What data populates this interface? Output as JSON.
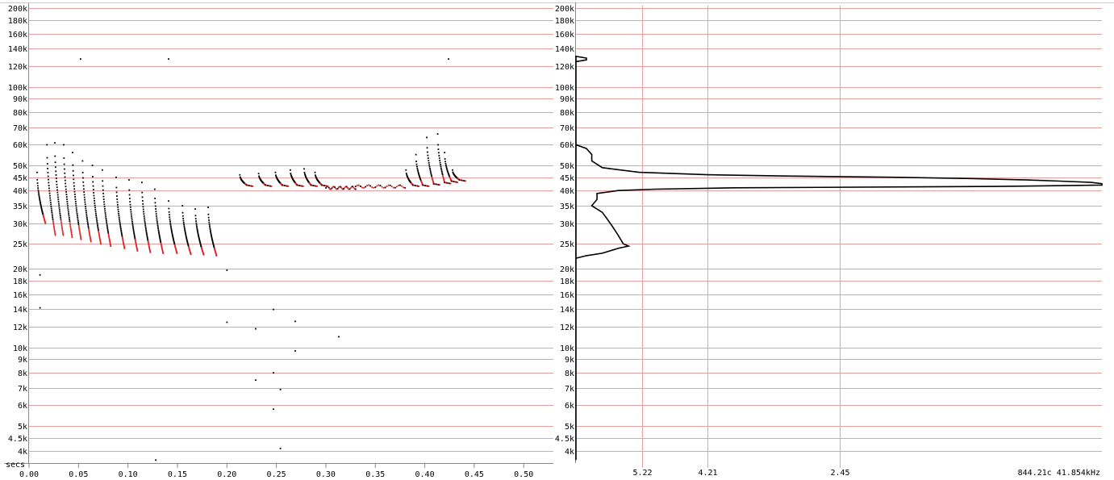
{
  "colors": {
    "grid": "#e8a0a0",
    "background": "#ffffff",
    "ink": "#000000",
    "highlight": "#e02020"
  },
  "chart_data": [
    {
      "type": "scatter",
      "title": "",
      "xlabel": "secs",
      "ylabel": "",
      "y_scale": "log",
      "xlim": [
        0.0,
        0.53
      ],
      "ylim": [
        3600,
        205000
      ],
      "x_ticks": [
        "0.00",
        "0.05",
        "0.10",
        "0.15",
        "0.20",
        "0.25",
        "0.30",
        "0.35",
        "0.40",
        "0.45",
        "0.50"
      ],
      "y_ticks": [
        {
          "v": 200000,
          "label": "200k"
        },
        {
          "v": 180000,
          "label": "180k"
        },
        {
          "v": 160000,
          "label": "160k"
        },
        {
          "v": 140000,
          "label": "140k"
        },
        {
          "v": 120000,
          "label": "120k"
        },
        {
          "v": 100000,
          "label": "100k"
        },
        {
          "v": 90000,
          "label": "90k"
        },
        {
          "v": 80000,
          "label": "80k"
        },
        {
          "v": 70000,
          "label": "70k"
        },
        {
          "v": 60000,
          "label": "60k"
        },
        {
          "v": 50000,
          "label": "50k"
        },
        {
          "v": 45000,
          "label": "45k"
        },
        {
          "v": 40000,
          "label": "40k"
        },
        {
          "v": 35000,
          "label": "35k"
        },
        {
          "v": 30000,
          "label": "30k"
        },
        {
          "v": 25000,
          "label": "25k"
        },
        {
          "v": 20000,
          "label": "20k"
        },
        {
          "v": 18000,
          "label": "18k"
        },
        {
          "v": 16000,
          "label": "16k"
        },
        {
          "v": 14000,
          "label": "14k"
        },
        {
          "v": 12000,
          "label": "12k"
        },
        {
          "v": 10000,
          "label": "10k"
        },
        {
          "v": 9000,
          "label": "9k"
        },
        {
          "v": 8000,
          "label": "8k"
        },
        {
          "v": 7000,
          "label": "7k"
        },
        {
          "v": 6000,
          "label": "6k"
        },
        {
          "v": 5000,
          "label": "5k"
        },
        {
          "v": 4500,
          "label": "4.5k"
        },
        {
          "v": 4000,
          "label": "4k"
        }
      ],
      "grid": true,
      "pulses_fm": [
        {
          "t": 0.008,
          "f0": 47000,
          "f1": 30000
        },
        {
          "t": 0.018,
          "f0": 60000,
          "f1": 27000
        },
        {
          "t": 0.026,
          "f0": 61000,
          "f1": 27000
        },
        {
          "t": 0.035,
          "f0": 60000,
          "f1": 26500
        },
        {
          "t": 0.044,
          "f0": 56000,
          "f1": 26000
        },
        {
          "t": 0.054,
          "f0": 52000,
          "f1": 25500
        },
        {
          "t": 0.064,
          "f0": 50000,
          "f1": 25000
        },
        {
          "t": 0.074,
          "f0": 48000,
          "f1": 24500
        },
        {
          "t": 0.088,
          "f0": 45000,
          "f1": 24000
        },
        {
          "t": 0.101,
          "f0": 44000,
          "f1": 23500
        },
        {
          "t": 0.114,
          "f0": 43000,
          "f1": 23200
        },
        {
          "t": 0.127,
          "f0": 40500,
          "f1": 23000
        },
        {
          "t": 0.141,
          "f0": 36500,
          "f1": 23000
        },
        {
          "t": 0.155,
          "f0": 35000,
          "f1": 22800
        },
        {
          "t": 0.168,
          "f0": 34000,
          "f1": 22700
        },
        {
          "t": 0.181,
          "f0": 34500,
          "f1": 22500
        }
      ],
      "pulses_cf": [
        {
          "t": 0.213,
          "f0": 46000,
          "f1": 42000
        },
        {
          "t": 0.232,
          "f0": 46500,
          "f1": 42000
        },
        {
          "t": 0.249,
          "f0": 47000,
          "f1": 42000
        },
        {
          "t": 0.264,
          "f0": 48000,
          "f1": 42000
        },
        {
          "t": 0.278,
          "f0": 48500,
          "f1": 42000
        },
        {
          "t": 0.289,
          "f0": 47000,
          "f1": 42000
        },
        {
          "t": 0.381,
          "f0": 48000,
          "f1": 42000
        },
        {
          "t": 0.391,
          "f0": 55000,
          "f1": 42000
        },
        {
          "t": 0.402,
          "f0": 64000,
          "f1": 42500
        },
        {
          "t": 0.413,
          "f0": 66000,
          "f1": 43000
        },
        {
          "t": 0.42,
          "f0": 56000,
          "f1": 43500
        },
        {
          "t": 0.428,
          "f0": 48000,
          "f1": 44000
        }
      ],
      "flat_segments": [
        {
          "t0": 0.3,
          "t1": 0.33,
          "f": 41000
        },
        {
          "t0": 0.33,
          "t1": 0.38,
          "f": 41500
        }
      ],
      "noise_points": [
        {
          "t": 0.052,
          "f": 128000
        },
        {
          "t": 0.141,
          "f": 128000
        },
        {
          "t": 0.424,
          "f": 128000
        },
        {
          "t": 0.011,
          "f": 19000
        },
        {
          "t": 0.011,
          "f": 14200
        },
        {
          "t": 0.2,
          "f": 19800
        },
        {
          "t": 0.2,
          "f": 12500
        },
        {
          "t": 0.229,
          "f": 11800
        },
        {
          "t": 0.247,
          "f": 14000
        },
        {
          "t": 0.269,
          "f": 12600
        },
        {
          "t": 0.269,
          "f": 9700
        },
        {
          "t": 0.313,
          "f": 11000
        },
        {
          "t": 0.247,
          "f": 8000
        },
        {
          "t": 0.229,
          "f": 7500
        },
        {
          "t": 0.254,
          "f": 6900
        },
        {
          "t": 0.247,
          "f": 5800
        },
        {
          "t": 0.254,
          "f": 4100
        },
        {
          "t": 0.128,
          "f": 3700
        }
      ]
    },
    {
      "type": "line",
      "title": "",
      "xlabel": "",
      "ylabel": "",
      "y_scale": "log",
      "ylim": [
        3600,
        205000
      ],
      "x_ticks": [
        "5.22",
        "4.21",
        "2.45"
      ],
      "readout": "844.21c 41.854kHz",
      "profile": [
        [
          3700,
          0.0
        ],
        [
          125000,
          0.0
        ],
        [
          127000,
          0.02
        ],
        [
          129000,
          0.02
        ],
        [
          131000,
          0.0
        ],
        [
          60000,
          0.0
        ],
        [
          58000,
          0.02
        ],
        [
          55000,
          0.03
        ],
        [
          52000,
          0.03
        ],
        [
          49000,
          0.05
        ],
        [
          47000,
          0.12
        ],
        [
          46000,
          0.25
        ],
        [
          45500,
          0.4
        ],
        [
          45000,
          0.6
        ],
        [
          44500,
          0.75
        ],
        [
          44000,
          0.85
        ],
        [
          43500,
          0.92
        ],
        [
          43000,
          0.98
        ],
        [
          42500,
          1.0
        ],
        [
          42000,
          1.0
        ],
        [
          41500,
          0.8
        ],
        [
          41000,
          0.3
        ],
        [
          40500,
          0.15
        ],
        [
          40000,
          0.08
        ],
        [
          39000,
          0.04
        ],
        [
          37000,
          0.04
        ],
        [
          35000,
          0.03
        ],
        [
          33000,
          0.05
        ],
        [
          31000,
          0.06
        ],
        [
          29000,
          0.07
        ],
        [
          27000,
          0.08
        ],
        [
          25000,
          0.09
        ],
        [
          24500,
          0.1
        ],
        [
          24000,
          0.08
        ],
        [
          23000,
          0.05
        ],
        [
          22500,
          0.02
        ],
        [
          22000,
          0.0
        ],
        [
          3700,
          0.0
        ]
      ]
    }
  ]
}
